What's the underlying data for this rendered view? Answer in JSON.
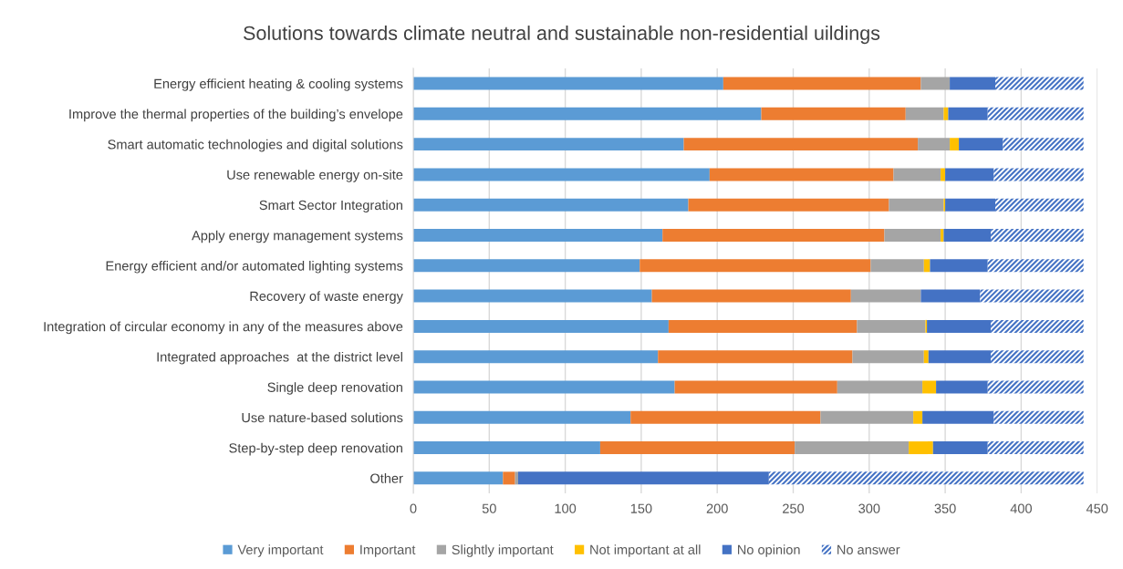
{
  "chart_data": {
    "type": "bar",
    "orientation": "horizontal",
    "stacked": true,
    "title": "Solutions towards climate neutral and sustainable non-residential uildings",
    "categories": [
      "Energy efficient heating & cooling systems",
      "Improve the thermal properties of the building’s envelope",
      "Smart automatic technologies and digital solutions",
      "Use renewable energy on-site",
      "Smart Sector Integration",
      "Apply energy management systems",
      "Energy efficient and/or automated lighting systems",
      "Recovery of waste energy",
      "Integration of circular economy in any of the measures above",
      "Integrated approaches  at the district level",
      "Single deep renovation",
      "Use nature-based solutions",
      "Step-by-step deep renovation",
      "Other"
    ],
    "series": [
      {
        "name": "Very important",
        "color": "#5b9bd5",
        "values": [
          204,
          229,
          178,
          195,
          181,
          164,
          149,
          157,
          168,
          161,
          172,
          143,
          123,
          59
        ]
      },
      {
        "name": "Important",
        "color": "#ed7d31",
        "values": [
          130,
          95,
          154,
          121,
          132,
          146,
          152,
          131,
          124,
          128,
          107,
          125,
          128,
          8
        ]
      },
      {
        "name": "Slightly important",
        "color": "#a5a5a5",
        "values": [
          19,
          25,
          21,
          31,
          36,
          37,
          35,
          46,
          45,
          47,
          56,
          61,
          75,
          2
        ]
      },
      {
        "name": "Not important at all",
        "color": "#ffc000",
        "values": [
          0,
          3,
          6,
          3,
          1,
          2,
          4,
          0,
          1,
          3,
          9,
          6,
          16,
          0
        ]
      },
      {
        "name": "No opinion",
        "color": "#4472c4",
        "values": [
          30,
          26,
          29,
          32,
          33,
          31,
          38,
          39,
          42,
          41,
          34,
          47,
          36,
          165
        ]
      },
      {
        "name": "No answer",
        "color": "#4472c4",
        "values": [
          58,
          63,
          53,
          59,
          58,
          61,
          63,
          68,
          61,
          61,
          63,
          59,
          63,
          207
        ]
      }
    ],
    "xlim": [
      0,
      450
    ],
    "xticks": [
      0,
      50,
      100,
      150,
      200,
      250,
      300,
      350,
      400,
      450
    ],
    "grid": "x",
    "legend": "bottom"
  }
}
